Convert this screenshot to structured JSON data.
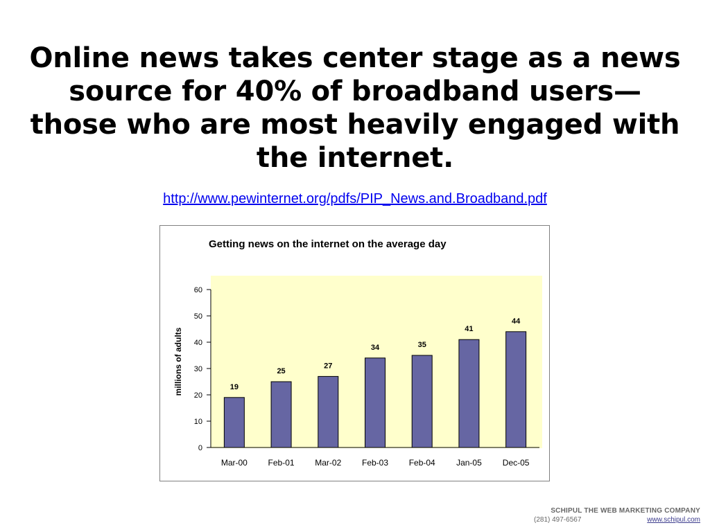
{
  "slide": {
    "title": "Online news takes center stage as a news source for 40% of broadband users—those who are most heavily engaged with the internet.",
    "source_link": "http://www.pewinternet.org/pdfs/PIP_News.and.Broadband.pdf"
  },
  "chart_data": {
    "type": "bar",
    "title": "Getting news on the internet on the average day",
    "ylabel": "millions of adults",
    "xlabel": "",
    "categories": [
      "Mar-00",
      "Feb-01",
      "Mar-02",
      "Feb-03",
      "Feb-04",
      "Jan-05",
      "Dec-05"
    ],
    "values": [
      19,
      25,
      27,
      34,
      35,
      41,
      44
    ],
    "data_labels": [
      "19",
      "25",
      "27",
      "34",
      "35",
      "41",
      "44"
    ],
    "ylim": [
      0,
      60
    ],
    "yticks": [
      0,
      10,
      20,
      30,
      40,
      50,
      60
    ],
    "grid": false,
    "legend": "none",
    "colors": {
      "bar": "#6666a3",
      "bar_stroke": "#000000",
      "plot_background": "#ffffcc"
    }
  },
  "footer": {
    "company": "SCHIPUL THE WEB MARKETING COMPANY",
    "phone": "(281) 497-6567",
    "website": "www.schipul.com"
  }
}
